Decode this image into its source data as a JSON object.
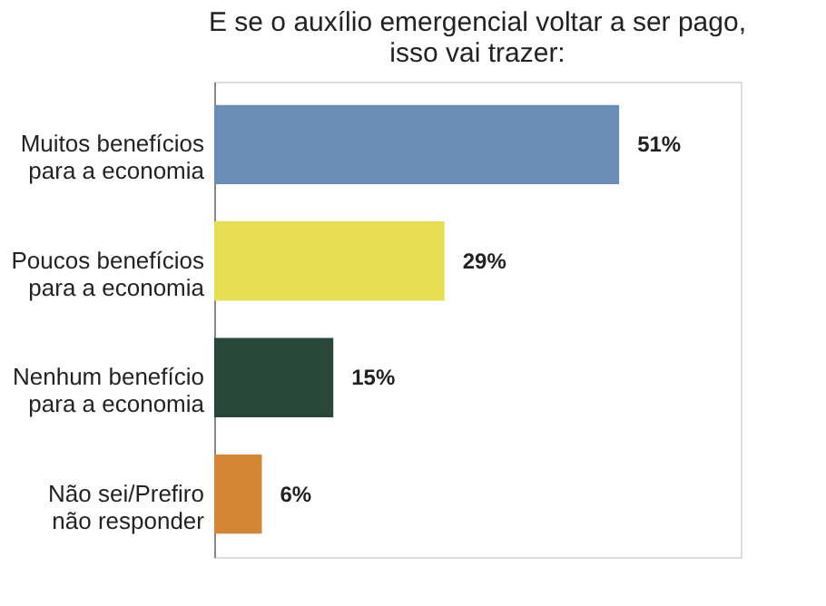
{
  "chart_data": {
    "type": "bar",
    "orientation": "horizontal",
    "title": "E se o auxílio emergencial voltar a ser pago,\nisso vai trazer:",
    "categories": [
      "Muitos benefícios\npara a economia",
      "Poucos benefícios\npara a economia",
      "Nenhum benefício\npara a economia",
      "Não sei/Prefiro\nnão responder"
    ],
    "values": [
      51,
      29,
      15,
      6
    ],
    "colors": [
      "#6a8db5",
      "#e8de52",
      "#29463a",
      "#d48637"
    ],
    "value_labels": [
      "51%",
      "29%",
      "15%",
      "6%"
    ],
    "grid": false
  }
}
